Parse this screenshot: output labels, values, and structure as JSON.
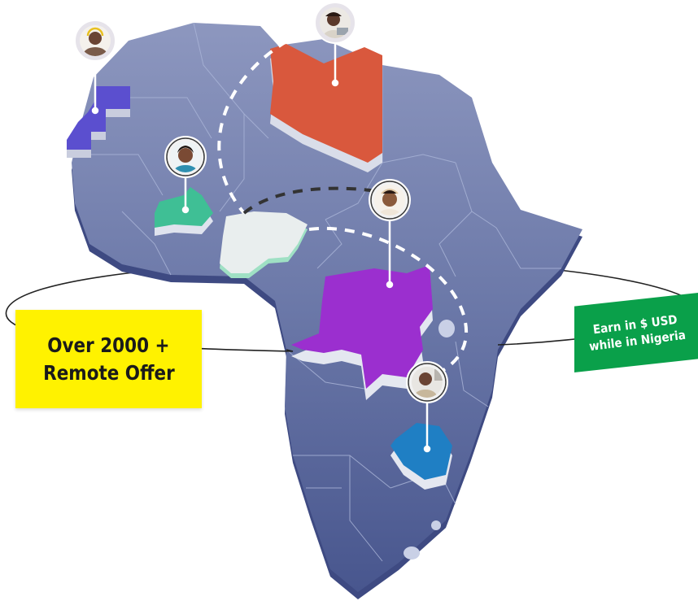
{
  "map": {
    "region": "Africa",
    "highlighted_countries": [
      {
        "name": "Western Sahara",
        "color": "#5b4fcf"
      },
      {
        "name": "Libya",
        "color": "#d9583d"
      },
      {
        "name": "Burkina Faso",
        "color": "#3fbf95"
      },
      {
        "name": "Nigeria",
        "color": "#e9eeee"
      },
      {
        "name": "DR Congo",
        "color": "#9b2fcf"
      },
      {
        "name": "Zimbabwe",
        "color": "#1f7fc4"
      }
    ],
    "colors": {
      "land": "#6b78a8",
      "land_shadow": "#3e4a82",
      "borders": "#a8b3d6",
      "orbit_line": "#222222",
      "dashed_arc_light": "#ffffff",
      "dashed_arc_dark": "#333333"
    }
  },
  "avatars": [
    {
      "icon": "person-with-headset-avatar"
    },
    {
      "icon": "person-with-laptop-avatar"
    },
    {
      "icon": "smiling-woman-avatar"
    },
    {
      "icon": "woman-with-headband-avatar"
    },
    {
      "icon": "man-at-desk-avatar"
    }
  ],
  "badges": {
    "offers_line1": "Over 2000 +",
    "offers_line2": "Remote Offer",
    "offers_color": "#fff200",
    "earn_line1": "Earn in $ USD",
    "earn_line2": "while in Nigeria",
    "earn_color": "#0aa04a"
  }
}
